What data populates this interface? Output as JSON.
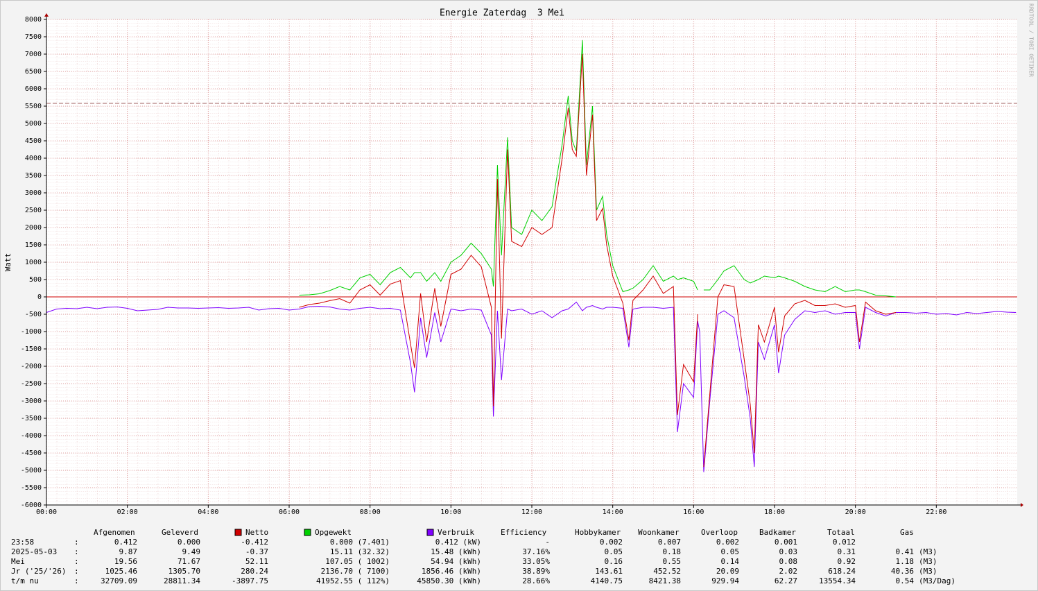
{
  "chart_data": {
    "type": "line",
    "title": "Energie Zaterdag  3 Mei",
    "y_label": "Watt",
    "watermark": "RRDTOOL / TOBI OETIKER",
    "xlim": [
      0,
      24
    ],
    "xticks": [
      {
        "value": 0,
        "label": "00:00"
      },
      {
        "value": 2,
        "label": "02:00"
      },
      {
        "value": 4,
        "label": "04:00"
      },
      {
        "value": 6,
        "label": "06:00"
      },
      {
        "value": 8,
        "label": "08:00"
      },
      {
        "value": 10,
        "label": "10:00"
      },
      {
        "value": 12,
        "label": "12:00"
      },
      {
        "value": 14,
        "label": "14:00"
      },
      {
        "value": 16,
        "label": "16:00"
      },
      {
        "value": 18,
        "label": "18:00"
      },
      {
        "value": 20,
        "label": "20:00"
      },
      {
        "value": 22,
        "label": "22:00"
      }
    ],
    "ylim": [
      -6000,
      8000
    ],
    "yticks": [
      -6000,
      -5500,
      -5000,
      -4500,
      -4000,
      -3500,
      -3000,
      -2500,
      -2000,
      -1500,
      -1000,
      -500,
      0,
      500,
      1000,
      1500,
      2000,
      2500,
      3000,
      3500,
      4000,
      4500,
      5000,
      5500,
      6000,
      6500,
      7000,
      7500,
      8000
    ],
    "grid": true,
    "reference_line": 5580,
    "x": [
      0,
      0.25,
      0.5,
      0.75,
      1,
      1.25,
      1.5,
      1.75,
      2,
      2.25,
      2.5,
      2.75,
      3,
      3.25,
      3.5,
      3.75,
      4,
      4.25,
      4.5,
      4.75,
      5,
      5.25,
      5.5,
      5.75,
      6,
      6.25,
      6.5,
      6.75,
      7,
      7.25,
      7.5,
      7.75,
      8,
      8.25,
      8.5,
      8.75,
      9,
      9.1,
      9.25,
      9.4,
      9.6,
      9.75,
      10,
      10.25,
      10.5,
      10.75,
      11,
      11.05,
      11.15,
      11.25,
      11.4,
      11.5,
      11.75,
      12,
      12.25,
      12.5,
      12.75,
      12.9,
      13,
      13.1,
      13.25,
      13.35,
      13.5,
      13.6,
      13.75,
      13.85,
      14,
      14.25,
      14.4,
      14.5,
      14.75,
      15,
      15.25,
      15.5,
      15.6,
      15.75,
      16,
      16.1,
      16.15,
      16.25,
      16.4,
      16.6,
      16.75,
      17,
      17.25,
      17.4,
      17.5,
      17.6,
      17.75,
      18,
      18.1,
      18.25,
      18.5,
      18.75,
      19,
      19.25,
      19.5,
      19.75,
      20,
      20.1,
      20.25,
      20.5,
      20.75,
      21,
      21.25,
      21.5,
      21.75,
      22,
      22.25,
      22.5,
      22.75,
      23,
      23.25,
      23.5,
      23.75,
      23.97
    ],
    "series": [
      {
        "name": "Opgewekt",
        "color": "#00d000",
        "values": [
          null,
          null,
          null,
          null,
          null,
          null,
          null,
          null,
          null,
          null,
          null,
          null,
          null,
          null,
          null,
          null,
          null,
          null,
          null,
          null,
          null,
          null,
          null,
          null,
          null,
          50,
          60,
          90,
          180,
          300,
          200,
          550,
          650,
          350,
          700,
          850,
          550,
          700,
          700,
          450,
          700,
          450,
          1000,
          1200,
          1550,
          1250,
          800,
          300,
          3800,
          1200,
          4600,
          2000,
          1800,
          2500,
          2200,
          2600,
          4400,
          5800,
          4500,
          4200,
          7400,
          3800,
          5500,
          2500,
          2900,
          1800,
          900,
          150,
          200,
          250,
          500,
          900,
          450,
          600,
          500,
          550,
          450,
          200,
          null,
          200,
          200,
          500,
          750,
          900,
          500,
          400,
          450,
          500,
          600,
          550,
          600,
          550,
          450,
          300,
          200,
          150,
          300,
          150,
          200,
          200,
          150,
          50,
          30,
          0,
          null,
          null,
          null,
          null,
          null,
          null,
          null,
          null,
          null,
          null,
          null,
          null
        ]
      },
      {
        "name": "Verbruik",
        "color": "#7f00ff",
        "values": [
          -450,
          -350,
          -330,
          -340,
          -300,
          -340,
          -300,
          -290,
          -330,
          -400,
          -380,
          -360,
          -300,
          -320,
          -320,
          -330,
          -320,
          -310,
          -330,
          -320,
          -300,
          -380,
          -340,
          -330,
          -380,
          -350,
          -280,
          -270,
          -290,
          -350,
          -380,
          -330,
          -300,
          -340,
          -330,
          -380,
          -1900,
          -2750,
          -600,
          -1750,
          -450,
          -1300,
          -350,
          -400,
          -350,
          -380,
          -1100,
          -3450,
          -400,
          -2400,
          -350,
          -400,
          -350,
          -500,
          -400,
          -600,
          -400,
          -350,
          -250,
          -150,
          -400,
          -300,
          -250,
          -300,
          -350,
          -300,
          -300,
          -330,
          -1450,
          -350,
          -300,
          -300,
          -330,
          -300,
          -3900,
          -2500,
          -2900,
          -700,
          -1000,
          -5050,
          -3000,
          -500,
          -400,
          -600,
          -2300,
          -3500,
          -4900,
          -1300,
          -1800,
          -800,
          -2200,
          -1100,
          -650,
          -400,
          -450,
          -400,
          -500,
          -450,
          -450,
          -1500,
          -300,
          -450,
          -550,
          -450,
          -450,
          -470,
          -450,
          -500,
          -480,
          -520,
          -450,
          -480,
          -450,
          -420,
          -440,
          -450
        ]
      },
      {
        "name": "Netto",
        "color": "#d00000",
        "values": [
          null,
          null,
          null,
          null,
          null,
          null,
          null,
          null,
          null,
          null,
          null,
          null,
          null,
          null,
          null,
          null,
          null,
          null,
          null,
          null,
          null,
          null,
          null,
          null,
          null,
          -300,
          -220,
          -180,
          -110,
          -50,
          -180,
          200,
          350,
          50,
          370,
          470,
          -1350,
          -2050,
          100,
          -1300,
          250,
          -850,
          650,
          800,
          1200,
          870,
          -300,
          -3150,
          3400,
          -1200,
          4250,
          1600,
          1450,
          2000,
          1800,
          2000,
          4000,
          5450,
          4250,
          4050,
          7000,
          3500,
          5250,
          2200,
          2550,
          1500,
          600,
          -180,
          -1250,
          -100,
          200,
          600,
          100,
          300,
          -3400,
          -1950,
          -2450,
          -500,
          null,
          -4900,
          -2800,
          0,
          350,
          300,
          -1800,
          -3100,
          -4500,
          -800,
          -1300,
          -300,
          -1600,
          -550,
          -200,
          -100,
          -250,
          -250,
          -200,
          -300,
          -250,
          -1300,
          -150,
          -400,
          -500,
          -450,
          null,
          null,
          null,
          null,
          null,
          null,
          null,
          null,
          null,
          null,
          null,
          null
        ]
      }
    ]
  },
  "table": {
    "header": [
      "Afgenomen",
      "Geleverd",
      "Efficiency",
      "Hobbykamer",
      "Woonkamer",
      "Overloop",
      "Badkamer",
      "Totaal",
      "Gas"
    ],
    "rows": [
      [
        "23:58",
        ":",
        "0.412",
        "0.000",
        "-0.412",
        "0.000 (7.401)",
        "0.412 (kW)",
        "-",
        "0.002",
        "0.007",
        "0.002",
        "0.001",
        "0.012"
      ],
      [
        "2025-05-03",
        ":",
        "9.87",
        "9.49",
        "-0.37",
        "15.11 (32.32)",
        "15.48 (kWh)",
        "37.16%",
        "0.05",
        "0.18",
        "0.05",
        "0.03",
        "0.31",
        "0.41",
        "(M3)"
      ],
      [
        "Mei",
        ":",
        "19.56",
        "71.67",
        "52.11",
        "107.05 ( 1002)",
        "54.94 (kWh)",
        "33.05%",
        "0.16",
        "0.55",
        "0.14",
        "0.08",
        "0.92",
        "1.18",
        "(M3)"
      ],
      [
        "Jr ('25/'26)",
        ":",
        "1025.46",
        "1305.70",
        "280.24",
        "2136.70 ( 7100)",
        "1856.46 (kWh)",
        "38.89%",
        "143.61",
        "452.52",
        "20.09",
        "2.02",
        "618.24",
        "40.36",
        "(M3)"
      ],
      [
        "t/m nu",
        ":",
        "32709.09",
        "28811.34",
        "-3897.75",
        "41952.55 ( 112%)",
        "45850.30 (kWh)",
        "28.66%",
        "4140.75",
        "8421.38",
        "929.94",
        "62.27",
        "13554.34",
        "0.54",
        "(M3/Dag)"
      ]
    ]
  }
}
